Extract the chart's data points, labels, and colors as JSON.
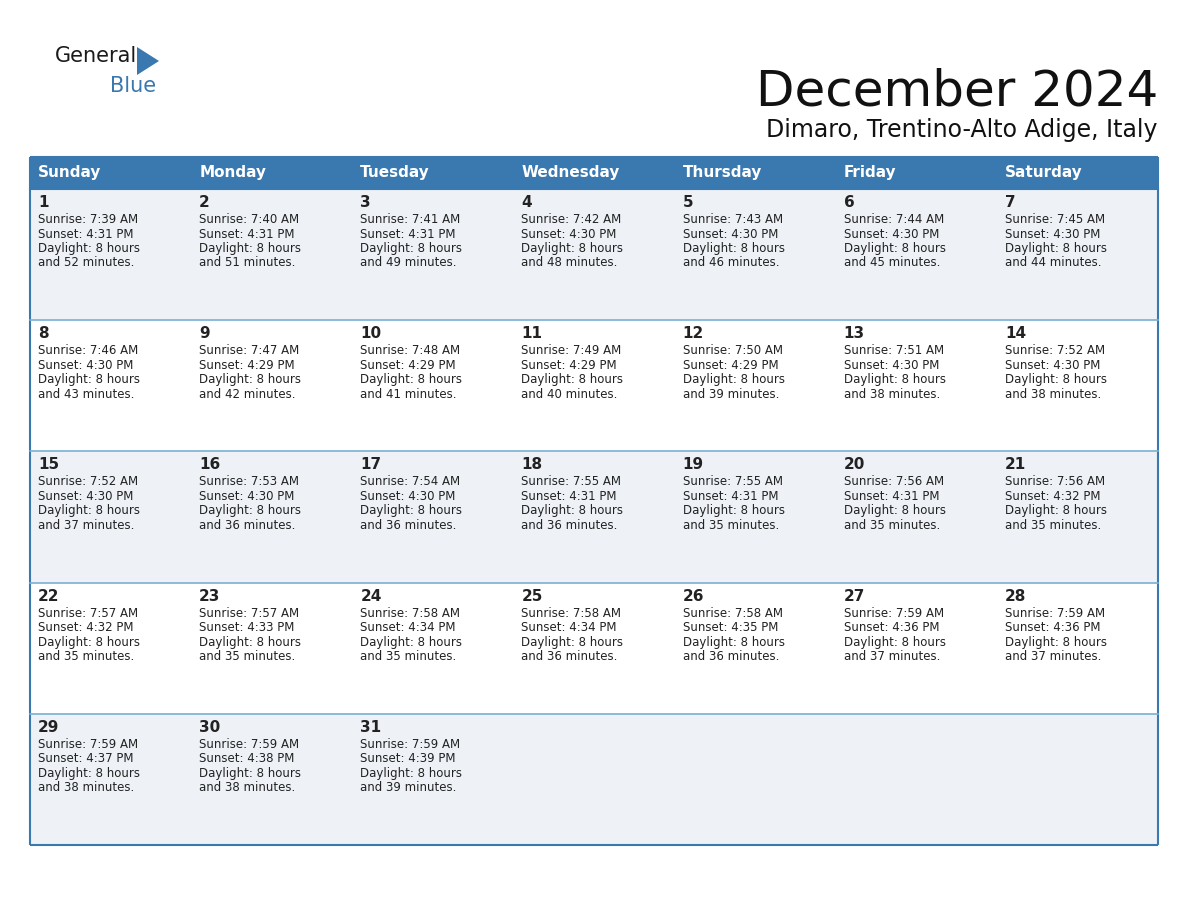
{
  "title": "December 2024",
  "subtitle": "Dimaro, Trentino-Alto Adige, Italy",
  "header_bg_color": "#3a78b0",
  "header_text_color": "#ffffff",
  "day_names": [
    "Sunday",
    "Monday",
    "Tuesday",
    "Wednesday",
    "Thursday",
    "Friday",
    "Saturday"
  ],
  "row_bg_even": "#eef2f7",
  "row_bg_odd": "#ffffff",
  "cell_text_color": "#222222",
  "border_color": "#3a78b0",
  "row_divider_color": "#7aafd4",
  "days": [
    {
      "day": 1,
      "col": 0,
      "row": 0,
      "sunrise": "7:39 AM",
      "sunset": "4:31 PM",
      "daylight_h": "8 hours",
      "daylight_m": "52 minutes."
    },
    {
      "day": 2,
      "col": 1,
      "row": 0,
      "sunrise": "7:40 AM",
      "sunset": "4:31 PM",
      "daylight_h": "8 hours",
      "daylight_m": "51 minutes."
    },
    {
      "day": 3,
      "col": 2,
      "row": 0,
      "sunrise": "7:41 AM",
      "sunset": "4:31 PM",
      "daylight_h": "8 hours",
      "daylight_m": "49 minutes."
    },
    {
      "day": 4,
      "col": 3,
      "row": 0,
      "sunrise": "7:42 AM",
      "sunset": "4:30 PM",
      "daylight_h": "8 hours",
      "daylight_m": "48 minutes."
    },
    {
      "day": 5,
      "col": 4,
      "row": 0,
      "sunrise": "7:43 AM",
      "sunset": "4:30 PM",
      "daylight_h": "8 hours",
      "daylight_m": "46 minutes."
    },
    {
      "day": 6,
      "col": 5,
      "row": 0,
      "sunrise": "7:44 AM",
      "sunset": "4:30 PM",
      "daylight_h": "8 hours",
      "daylight_m": "45 minutes."
    },
    {
      "day": 7,
      "col": 6,
      "row": 0,
      "sunrise": "7:45 AM",
      "sunset": "4:30 PM",
      "daylight_h": "8 hours",
      "daylight_m": "44 minutes."
    },
    {
      "day": 8,
      "col": 0,
      "row": 1,
      "sunrise": "7:46 AM",
      "sunset": "4:30 PM",
      "daylight_h": "8 hours",
      "daylight_m": "43 minutes."
    },
    {
      "day": 9,
      "col": 1,
      "row": 1,
      "sunrise": "7:47 AM",
      "sunset": "4:29 PM",
      "daylight_h": "8 hours",
      "daylight_m": "42 minutes."
    },
    {
      "day": 10,
      "col": 2,
      "row": 1,
      "sunrise": "7:48 AM",
      "sunset": "4:29 PM",
      "daylight_h": "8 hours",
      "daylight_m": "41 minutes."
    },
    {
      "day": 11,
      "col": 3,
      "row": 1,
      "sunrise": "7:49 AM",
      "sunset": "4:29 PM",
      "daylight_h": "8 hours",
      "daylight_m": "40 minutes."
    },
    {
      "day": 12,
      "col": 4,
      "row": 1,
      "sunrise": "7:50 AM",
      "sunset": "4:29 PM",
      "daylight_h": "8 hours",
      "daylight_m": "39 minutes."
    },
    {
      "day": 13,
      "col": 5,
      "row": 1,
      "sunrise": "7:51 AM",
      "sunset": "4:30 PM",
      "daylight_h": "8 hours",
      "daylight_m": "38 minutes."
    },
    {
      "day": 14,
      "col": 6,
      "row": 1,
      "sunrise": "7:52 AM",
      "sunset": "4:30 PM",
      "daylight_h": "8 hours",
      "daylight_m": "38 minutes."
    },
    {
      "day": 15,
      "col": 0,
      "row": 2,
      "sunrise": "7:52 AM",
      "sunset": "4:30 PM",
      "daylight_h": "8 hours",
      "daylight_m": "37 minutes."
    },
    {
      "day": 16,
      "col": 1,
      "row": 2,
      "sunrise": "7:53 AM",
      "sunset": "4:30 PM",
      "daylight_h": "8 hours",
      "daylight_m": "36 minutes."
    },
    {
      "day": 17,
      "col": 2,
      "row": 2,
      "sunrise": "7:54 AM",
      "sunset": "4:30 PM",
      "daylight_h": "8 hours",
      "daylight_m": "36 minutes."
    },
    {
      "day": 18,
      "col": 3,
      "row": 2,
      "sunrise": "7:55 AM",
      "sunset": "4:31 PM",
      "daylight_h": "8 hours",
      "daylight_m": "36 minutes."
    },
    {
      "day": 19,
      "col": 4,
      "row": 2,
      "sunrise": "7:55 AM",
      "sunset": "4:31 PM",
      "daylight_h": "8 hours",
      "daylight_m": "35 minutes."
    },
    {
      "day": 20,
      "col": 5,
      "row": 2,
      "sunrise": "7:56 AM",
      "sunset": "4:31 PM",
      "daylight_h": "8 hours",
      "daylight_m": "35 minutes."
    },
    {
      "day": 21,
      "col": 6,
      "row": 2,
      "sunrise": "7:56 AM",
      "sunset": "4:32 PM",
      "daylight_h": "8 hours",
      "daylight_m": "35 minutes."
    },
    {
      "day": 22,
      "col": 0,
      "row": 3,
      "sunrise": "7:57 AM",
      "sunset": "4:32 PM",
      "daylight_h": "8 hours",
      "daylight_m": "35 minutes."
    },
    {
      "day": 23,
      "col": 1,
      "row": 3,
      "sunrise": "7:57 AM",
      "sunset": "4:33 PM",
      "daylight_h": "8 hours",
      "daylight_m": "35 minutes."
    },
    {
      "day": 24,
      "col": 2,
      "row": 3,
      "sunrise": "7:58 AM",
      "sunset": "4:34 PM",
      "daylight_h": "8 hours",
      "daylight_m": "35 minutes."
    },
    {
      "day": 25,
      "col": 3,
      "row": 3,
      "sunrise": "7:58 AM",
      "sunset": "4:34 PM",
      "daylight_h": "8 hours",
      "daylight_m": "36 minutes."
    },
    {
      "day": 26,
      "col": 4,
      "row": 3,
      "sunrise": "7:58 AM",
      "sunset": "4:35 PM",
      "daylight_h": "8 hours",
      "daylight_m": "36 minutes."
    },
    {
      "day": 27,
      "col": 5,
      "row": 3,
      "sunrise": "7:59 AM",
      "sunset": "4:36 PM",
      "daylight_h": "8 hours",
      "daylight_m": "37 minutes."
    },
    {
      "day": 28,
      "col": 6,
      "row": 3,
      "sunrise": "7:59 AM",
      "sunset": "4:36 PM",
      "daylight_h": "8 hours",
      "daylight_m": "37 minutes."
    },
    {
      "day": 29,
      "col": 0,
      "row": 4,
      "sunrise": "7:59 AM",
      "sunset": "4:37 PM",
      "daylight_h": "8 hours",
      "daylight_m": "38 minutes."
    },
    {
      "day": 30,
      "col": 1,
      "row": 4,
      "sunrise": "7:59 AM",
      "sunset": "4:38 PM",
      "daylight_h": "8 hours",
      "daylight_m": "38 minutes."
    },
    {
      "day": 31,
      "col": 2,
      "row": 4,
      "sunrise": "7:59 AM",
      "sunset": "4:39 PM",
      "daylight_h": "8 hours",
      "daylight_m": "39 minutes."
    }
  ],
  "num_rows": 5,
  "num_cols": 7,
  "logo_triangle_color": "#3a78b0",
  "title_fontsize": 36,
  "subtitle_fontsize": 17,
  "header_fontsize": 11,
  "daynum_fontsize": 11,
  "cell_fontsize": 8.5
}
